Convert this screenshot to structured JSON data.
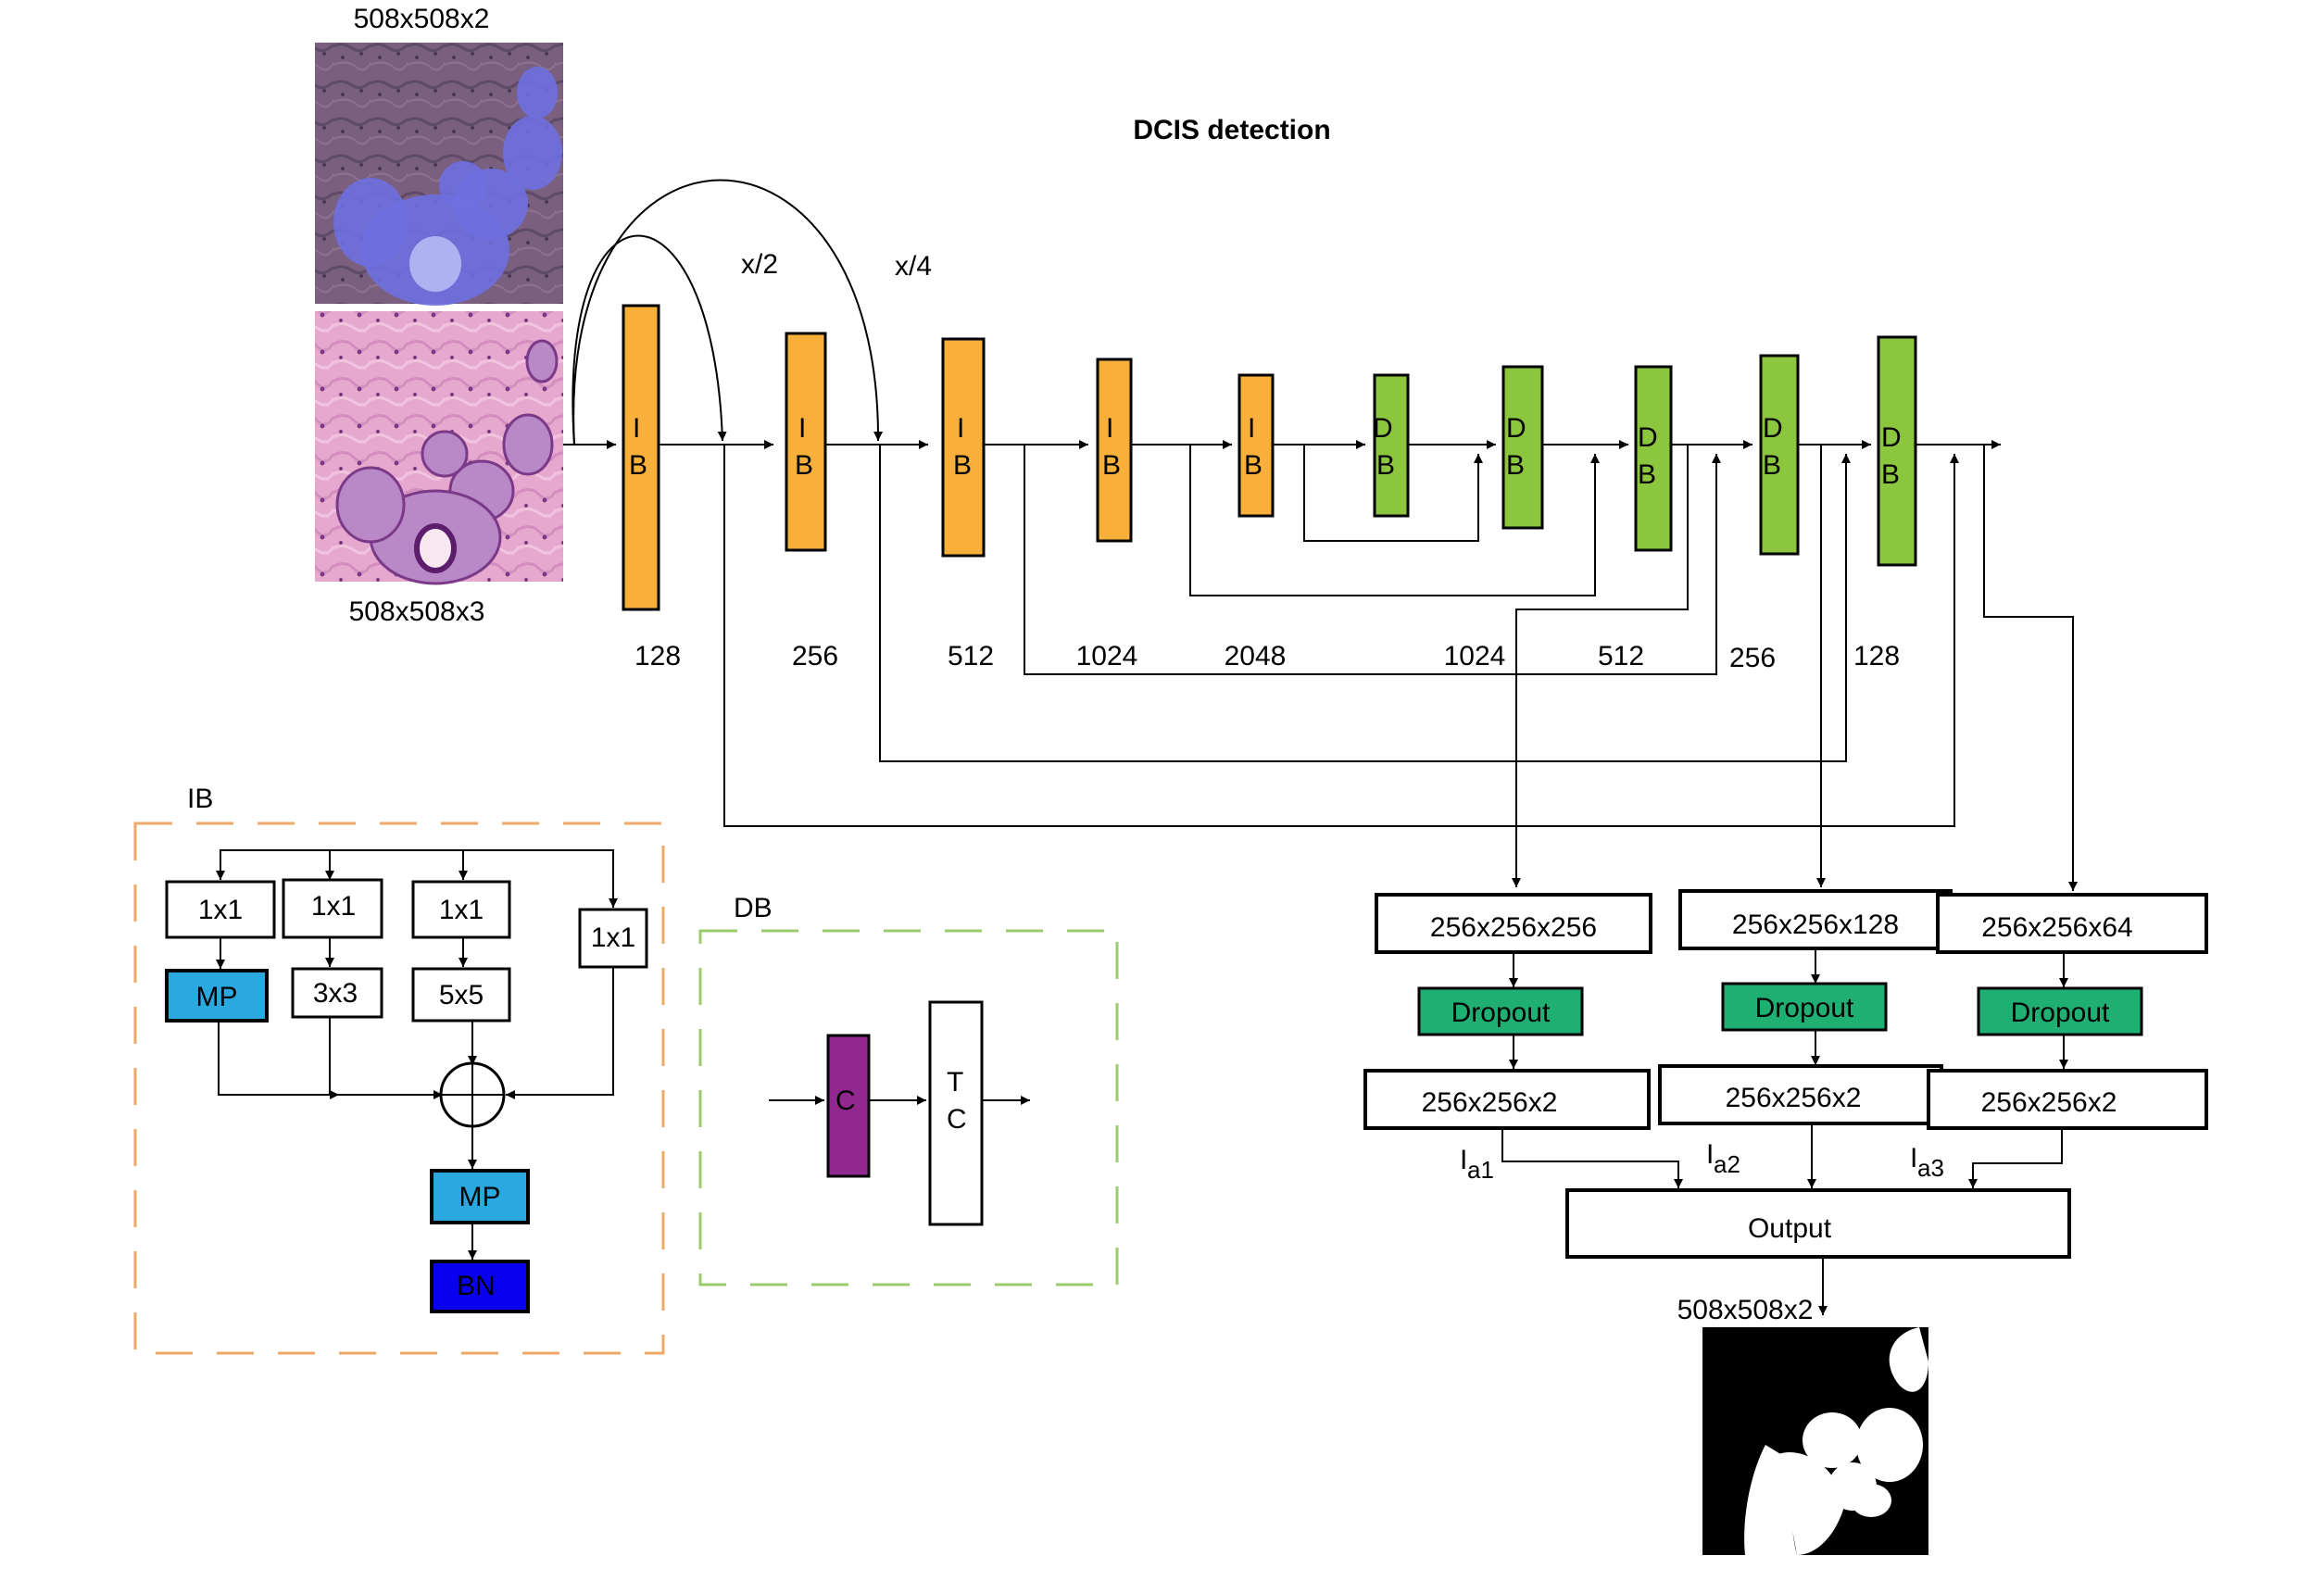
{
  "title": "DCIS detection",
  "inputs": {
    "top_dim": "508x508x2",
    "bottom_dim": "508x508x3"
  },
  "skip_labels": {
    "half": "x/2",
    "quarter": "x/4"
  },
  "encoder_blocks": [
    {
      "line1": "I",
      "line2": "B",
      "filters": "128"
    },
    {
      "line1": "I",
      "line2": "B",
      "filters": "256"
    },
    {
      "line1": "I",
      "line2": "B",
      "filters": "512"
    },
    {
      "line1": "I",
      "line2": "B",
      "filters": "1024"
    },
    {
      "line1": "I",
      "line2": "B",
      "filters": "2048"
    }
  ],
  "decoder_blocks": [
    {
      "line1": "D",
      "line2": "B",
      "filters": ""
    },
    {
      "line1": "D",
      "line2": "B",
      "filters": "1024"
    },
    {
      "line1": "D",
      "line2": "B",
      "filters": "512"
    },
    {
      "line1": "D",
      "line2": "B",
      "filters": "256"
    },
    {
      "line1": "D",
      "line2": "B",
      "filters": "128"
    }
  ],
  "heads": [
    {
      "feature": "256x256x256",
      "dropout": "Dropout",
      "out": "256x256x2",
      "I": "I",
      "sub": "a1"
    },
    {
      "feature": "256x256x128",
      "dropout": "Dropout",
      "out": "256x256x2",
      "I": "I",
      "sub": "a2"
    },
    {
      "feature": "256x256x64",
      "dropout": "Dropout",
      "out": "256x256x2",
      "I": "I",
      "sub": "a3"
    }
  ],
  "output": {
    "label": "Output",
    "dim": "508x508x2"
  },
  "ib_legend": {
    "title": "IB",
    "conv1": "1x1",
    "conv3": "3x3",
    "conv5": "5x5",
    "mp": "MP",
    "bn": "BN"
  },
  "db_legend": {
    "title": "DB",
    "c": "C",
    "tc1": "T",
    "tc2": "C"
  },
  "colors": {
    "ib_block": "#F9B03B",
    "db_block": "#8CC63F",
    "dropout": "#1FAF72",
    "mp": "#29A9E0",
    "bn": "#0A00F0",
    "c_block": "#92278F",
    "ib_border": "#F0A868",
    "db_border": "#9CCB6A"
  }
}
